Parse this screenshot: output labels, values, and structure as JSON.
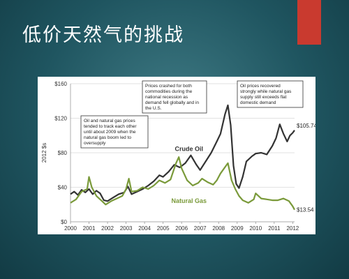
{
  "slide": {
    "title": "低价天然气的挑战",
    "accent_color": "#c93a2f",
    "background_color": "#1f5560"
  },
  "chart_data": {
    "type": "line",
    "title": "",
    "xlabel": "",
    "ylabel": "2012 $s",
    "ylim": [
      0,
      160
    ],
    "xlim": [
      2000,
      2012.1
    ],
    "yticks": [
      "$0",
      "$40",
      "$80",
      "$120",
      "$160"
    ],
    "xticks": [
      "2000",
      "2001",
      "2002",
      "2003",
      "2004",
      "2005",
      "2006",
      "2007",
      "2008",
      "2009",
      "2010",
      "2011",
      "2012"
    ],
    "grid": "horizontal",
    "series": [
      {
        "name": "Crude Oil",
        "color": "#333333",
        "end_label": "$105.74",
        "points": [
          [
            2000.0,
            32
          ],
          [
            2000.2,
            35
          ],
          [
            2000.4,
            31
          ],
          [
            2000.6,
            37
          ],
          [
            2000.8,
            34
          ],
          [
            2001.0,
            38
          ],
          [
            2001.2,
            32
          ],
          [
            2001.4,
            36
          ],
          [
            2001.6,
            33
          ],
          [
            2001.8,
            25
          ],
          [
            2002.0,
            24
          ],
          [
            2002.3,
            28
          ],
          [
            2002.6,
            32
          ],
          [
            2002.9,
            34
          ],
          [
            2003.1,
            41
          ],
          [
            2003.3,
            32
          ],
          [
            2003.6,
            35
          ],
          [
            2003.9,
            38
          ],
          [
            2004.2,
            42
          ],
          [
            2004.5,
            47
          ],
          [
            2004.8,
            54
          ],
          [
            2005.0,
            52
          ],
          [
            2005.3,
            58
          ],
          [
            2005.6,
            66
          ],
          [
            2005.9,
            63
          ],
          [
            2006.2,
            68
          ],
          [
            2006.5,
            77
          ],
          [
            2006.8,
            66
          ],
          [
            2007.0,
            60
          ],
          [
            2007.3,
            70
          ],
          [
            2007.6,
            80
          ],
          [
            2007.9,
            93
          ],
          [
            2008.1,
            102
          ],
          [
            2008.35,
            125
          ],
          [
            2008.5,
            135
          ],
          [
            2008.65,
            112
          ],
          [
            2008.8,
            65
          ],
          [
            2008.95,
            44
          ],
          [
            2009.1,
            39
          ],
          [
            2009.3,
            52
          ],
          [
            2009.5,
            70
          ],
          [
            2009.8,
            76
          ],
          [
            2010.0,
            79
          ],
          [
            2010.3,
            80
          ],
          [
            2010.6,
            78
          ],
          [
            2010.9,
            88
          ],
          [
            2011.1,
            97
          ],
          [
            2011.3,
            113
          ],
          [
            2011.5,
            102
          ],
          [
            2011.7,
            93
          ],
          [
            2011.85,
            100
          ],
          [
            2012.0,
            103
          ],
          [
            2012.1,
            106
          ]
        ]
      },
      {
        "name": "Natural Gas",
        "color": "#7a9a3a",
        "end_label": "$13.54",
        "points": [
          [
            2000.0,
            22
          ],
          [
            2000.3,
            26
          ],
          [
            2000.6,
            35
          ],
          [
            2000.9,
            38
          ],
          [
            2001.0,
            52
          ],
          [
            2001.15,
            40
          ],
          [
            2001.4,
            30
          ],
          [
            2001.7,
            24
          ],
          [
            2001.9,
            20
          ],
          [
            2002.2,
            24
          ],
          [
            2002.5,
            27
          ],
          [
            2002.8,
            30
          ],
          [
            2003.0,
            38
          ],
          [
            2003.15,
            50
          ],
          [
            2003.3,
            35
          ],
          [
            2003.6,
            36
          ],
          [
            2003.9,
            40
          ],
          [
            2004.2,
            38
          ],
          [
            2004.5,
            42
          ],
          [
            2004.8,
            48
          ],
          [
            2005.1,
            45
          ],
          [
            2005.4,
            49
          ],
          [
            2005.7,
            68
          ],
          [
            2005.85,
            75
          ],
          [
            2006.0,
            62
          ],
          [
            2006.3,
            48
          ],
          [
            2006.6,
            42
          ],
          [
            2006.9,
            45
          ],
          [
            2007.1,
            50
          ],
          [
            2007.4,
            46
          ],
          [
            2007.7,
            43
          ],
          [
            2007.9,
            48
          ],
          [
            2008.1,
            56
          ],
          [
            2008.4,
            65
          ],
          [
            2008.5,
            68
          ],
          [
            2008.7,
            48
          ],
          [
            2008.9,
            38
          ],
          [
            2009.1,
            30
          ],
          [
            2009.3,
            25
          ],
          [
            2009.6,
            22
          ],
          [
            2009.9,
            26
          ],
          [
            2010.0,
            33
          ],
          [
            2010.3,
            27
          ],
          [
            2010.6,
            26
          ],
          [
            2010.9,
            25
          ],
          [
            2011.2,
            25
          ],
          [
            2011.5,
            27
          ],
          [
            2011.8,
            24
          ],
          [
            2012.0,
            18
          ],
          [
            2012.1,
            14
          ]
        ]
      }
    ],
    "annotations": [
      "Oil and natural gas prices tended to track each other until about 2009 when the natural gas boom led to oversupply",
      "Prices crashed for both commodities during the national recession as demand fell globally and in the U.S.",
      "Oil prices recovered strongly while natural gas supply still exceeds flat domestic demand"
    ]
  }
}
